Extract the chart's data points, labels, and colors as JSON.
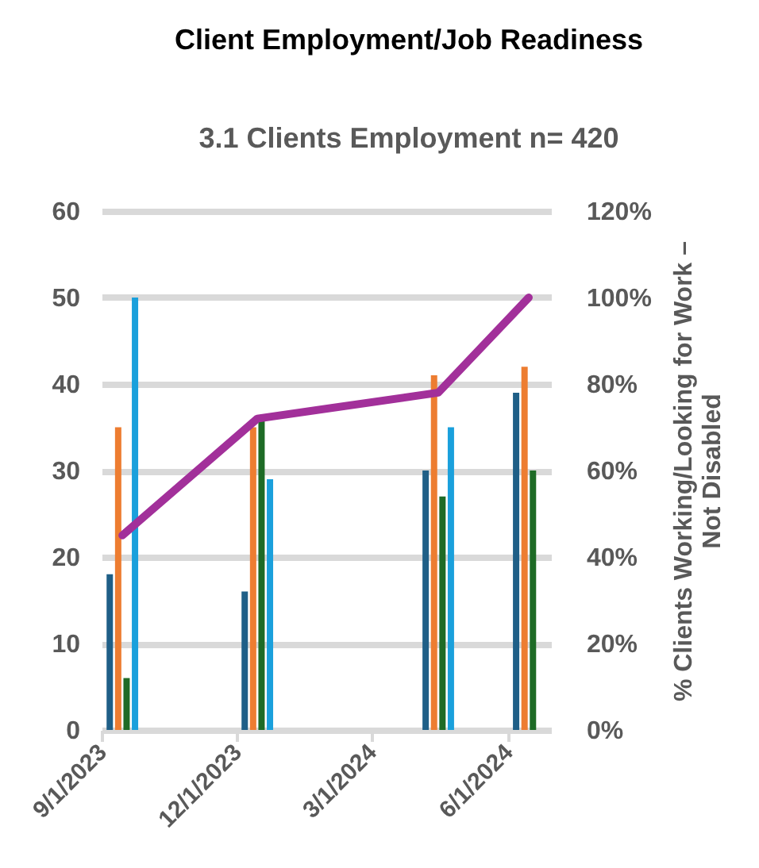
{
  "chart_data": {
    "type": "bar",
    "title": "Client Employment/Job Readiness",
    "subtitle": "3.1 Clients Employment n= 420",
    "y2label": "% Clients Working/Looking for Work – Not Disabled",
    "x": [
      "2023-09-15",
      "2023-12-15",
      "2024-04-15",
      "2024-06-15"
    ],
    "xlim": [
      "2023-09-01",
      "2024-06-30"
    ],
    "xticks": [
      {
        "value": "2023-09-01",
        "label": "9/1/2023"
      },
      {
        "value": "2023-12-01",
        "label": "12/1/2023"
      },
      {
        "value": "2024-03-01",
        "label": "3/1/2024"
      },
      {
        "value": "2024-06-01",
        "label": "6/1/2024"
      }
    ],
    "ylim": [
      0,
      60
    ],
    "yticks": [
      0,
      10,
      20,
      30,
      40,
      50,
      60
    ],
    "y2lim": [
      0,
      120
    ],
    "y2ticks": [
      {
        "value": 0,
        "label": "0%"
      },
      {
        "value": 20,
        "label": "20%"
      },
      {
        "value": 40,
        "label": "40%"
      },
      {
        "value": 60,
        "label": "60%"
      },
      {
        "value": 80,
        "label": "80%"
      },
      {
        "value": 100,
        "label": "100%"
      },
      {
        "value": 120,
        "label": "120%"
      }
    ],
    "grid": "y",
    "series": [
      {
        "color": "#1f5f87",
        "values": [
          18,
          16,
          30,
          39
        ]
      },
      {
        "color": "#ed7d31",
        "values": [
          35,
          35,
          41,
          42
        ]
      },
      {
        "color": "#1e6b26",
        "values": [
          6,
          36,
          27,
          30
        ]
      },
      {
        "color": "#1aa0dc",
        "values": [
          50,
          29,
          35,
          null
        ]
      },
      {
        "type": "line",
        "axis": "y2",
        "color": "#a2309a",
        "values": [
          45,
          72,
          78,
          100
        ]
      }
    ]
  }
}
